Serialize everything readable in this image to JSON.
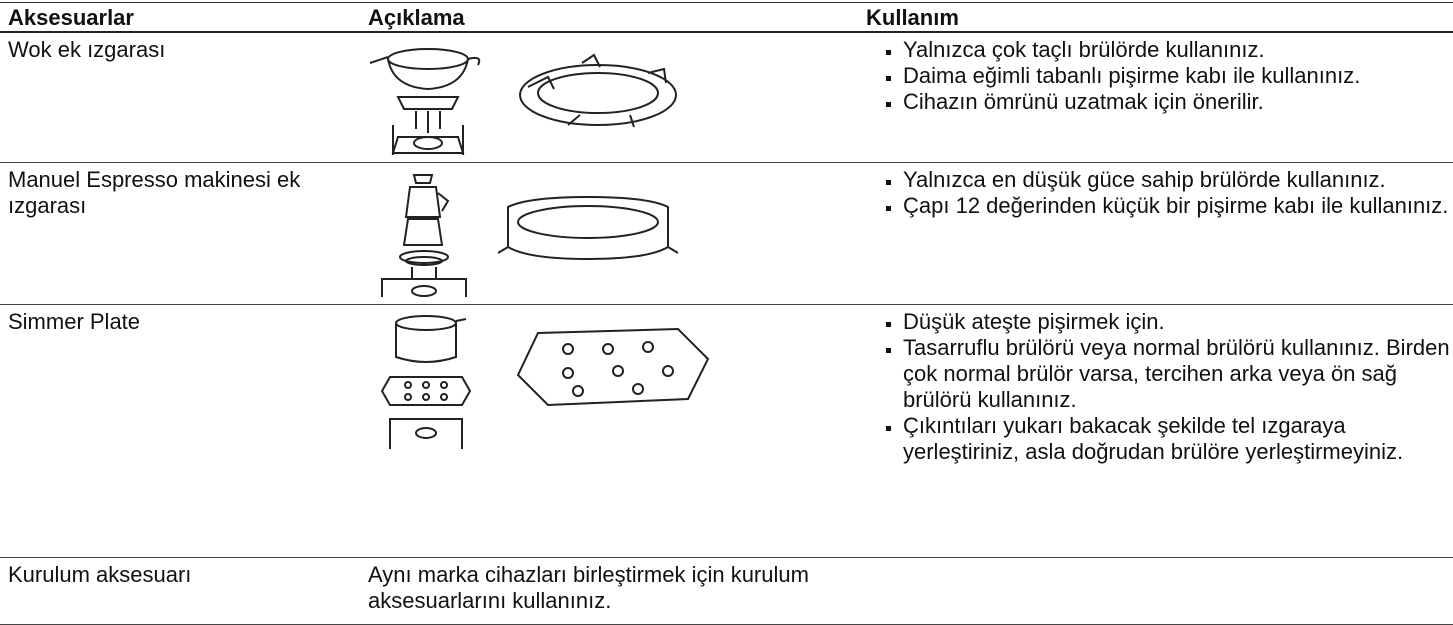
{
  "header": {
    "columns": [
      "Aksesuarlar",
      "Açıklama",
      "Kullanım"
    ]
  },
  "table": {
    "rows": [
      {
        "name": "Wok ek ızgarası",
        "usage": [
          "Yalnızca çok taçlı brülörde kullanınız.",
          "Daima eğimli tabanlı pişirme kabı ile kullanınız.",
          "Cihazın ömrünü uzatmak için önerilir."
        ]
      },
      {
        "name": "Manuel Espresso makinesi ek ızgarası",
        "usage": [
          "Yalnızca en düşük güce sahip brülörde kullanınız.",
          "Çapı 12 değerinden küçük bir pişirme kabı ile kullanınız."
        ]
      },
      {
        "name": "Simmer Plate",
        "usage": [
          "Düşük ateşte pişirmek için.",
          "Tasarruflu brülörü veya normal brülörü kullanınız. Birden çok normal brülör varsa, tercihen arka veya ön sağ brülörü kullanınız.",
          "Çıkıntıları yukarı bakacak şekilde tel ızgaraya yerleştiriniz, asla doğrudan brülöre yerleştirmeyiniz."
        ]
      },
      {
        "name": "Kurulum aksesuarı",
        "description": "Aynı marka cihazları birleştirmek için kurulum aksesuarlarını kullanınız."
      }
    ]
  }
}
